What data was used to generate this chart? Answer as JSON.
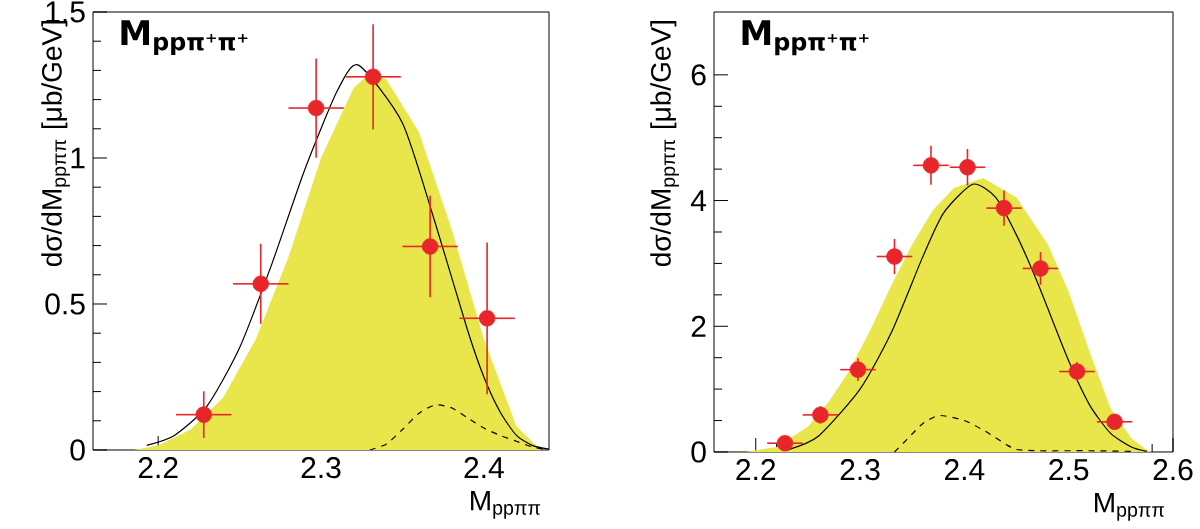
{
  "chart_data": [
    {
      "type": "scatter",
      "title": "M$_{ppπ⁺π⁺}$",
      "xlabel": "M$_{ppππ}$",
      "ylabel": "dσ/dM$_{ppππ}$ [μb/GeV]",
      "xlim": [
        2.16,
        2.44
      ],
      "ylim": [
        0,
        1.5
      ],
      "xticks": [
        2.2,
        2.3,
        2.4
      ],
      "yticks": [
        0,
        0.5,
        1,
        1.5
      ],
      "series": [
        {
          "type": "area",
          "color": "#e8e64a",
          "x": [
            2.185,
            2.2,
            2.22,
            2.24,
            2.26,
            2.28,
            2.3,
            2.32,
            2.33,
            2.34,
            2.36,
            2.38,
            2.4,
            2.42,
            2.435
          ],
          "values": [
            0,
            0.015,
            0.07,
            0.18,
            0.38,
            0.66,
            1.0,
            1.24,
            1.29,
            1.27,
            1.09,
            0.76,
            0.38,
            0.08,
            0
          ]
        },
        {
          "type": "line",
          "color": "#000000",
          "line_style": "solid",
          "x": [
            2.193,
            2.21,
            2.23,
            2.25,
            2.27,
            2.29,
            2.31,
            2.323,
            2.35,
            2.37,
            2.39,
            2.4,
            2.41,
            2.42,
            2.43,
            2.44
          ],
          "values": [
            0.016,
            0.05,
            0.15,
            0.35,
            0.64,
            0.96,
            1.23,
            1.318,
            1.12,
            0.78,
            0.41,
            0.25,
            0.13,
            0.05,
            0.015,
            0.003
          ]
        },
        {
          "type": "line",
          "color": "#000000",
          "line_style": "dashed",
          "x": [
            2.33,
            2.34,
            2.35,
            2.36,
            2.37,
            2.38,
            2.39,
            2.4,
            2.41,
            2.42,
            2.43,
            2.438
          ],
          "values": [
            0,
            0.02,
            0.07,
            0.125,
            0.154,
            0.145,
            0.11,
            0.075,
            0.05,
            0.03,
            0.01,
            0.003
          ]
        },
        {
          "color": "#e8262a",
          "x": [
            2.228,
            2.263,
            2.297,
            2.332,
            2.367,
            2.402
          ],
          "values": [
            0.121,
            0.569,
            1.171,
            1.278,
            0.697,
            0.451
          ],
          "errors": [
            0.08,
            0.137,
            0.17,
            0.18,
            0.174,
            0.26
          ],
          "xerrors": [
            0.017,
            0.017,
            0.017,
            0.017,
            0.017,
            0.017
          ]
        }
      ]
    },
    {
      "type": "scatter",
      "title": "M$_{ppπ⁺π⁺}$",
      "xlabel": "M$_{ppππ}$",
      "ylabel": "dσ/dM$_{ppππ}$ [μb/GeV]",
      "xlim": [
        2.16,
        2.6
      ],
      "ylim": [
        0,
        7
      ],
      "xticks": [
        2.2,
        2.3,
        2.4,
        2.5,
        2.6
      ],
      "yticks": [
        0,
        2,
        4,
        6
      ],
      "series": [
        {
          "type": "area",
          "color": "#e8e64a",
          "x": [
            2.19,
            2.22,
            2.25,
            2.27,
            2.29,
            2.31,
            2.33,
            2.35,
            2.37,
            2.39,
            2.418,
            2.45,
            2.48,
            2.5,
            2.52,
            2.54,
            2.56,
            2.575,
            2.58
          ],
          "values": [
            0,
            0.08,
            0.4,
            0.8,
            1.3,
            1.95,
            2.65,
            3.3,
            3.85,
            4.2,
            4.36,
            4.05,
            3.3,
            2.55,
            1.6,
            0.7,
            0.22,
            0.03,
            0
          ]
        },
        {
          "type": "line",
          "color": "#000000",
          "line_style": "solid",
          "x": [
            2.23,
            2.26,
            2.3,
            2.33,
            2.36,
            2.38,
            2.408,
            2.43,
            2.45,
            2.47,
            2.5,
            2.52,
            2.54,
            2.56,
            2.575
          ],
          "values": [
            0.03,
            0.25,
            1.0,
            1.9,
            3.1,
            3.8,
            4.26,
            4.05,
            3.45,
            2.7,
            1.45,
            0.75,
            0.3,
            0.08,
            0.01
          ]
        },
        {
          "type": "line",
          "color": "#000000",
          "line_style": "dashed",
          "x": [
            2.333,
            2.345,
            2.36,
            2.376,
            2.4,
            2.42,
            2.44,
            2.45,
            2.47,
            2.52,
            2.56
          ],
          "values": [
            0,
            0.2,
            0.45,
            0.58,
            0.5,
            0.33,
            0.12,
            0.04,
            0.02,
            0.02,
            0.01
          ]
        },
        {
          "color": "#e8262a",
          "x": [
            2.228,
            2.262,
            2.298,
            2.333,
            2.368,
            2.403,
            2.438,
            2.473,
            2.508,
            2.544
          ],
          "values": [
            0.14,
            0.59,
            1.31,
            3.11,
            4.56,
            4.53,
            3.88,
            2.92,
            1.28,
            0.48
          ],
          "errors": [
            0.1,
            0.14,
            0.18,
            0.28,
            0.31,
            0.29,
            0.28,
            0.26,
            0.15,
            0.1
          ],
          "xerrors": [
            0.017,
            0.017,
            0.017,
            0.017,
            0.017,
            0.017,
            0.017,
            0.017,
            0.017,
            0.017
          ]
        }
      ]
    }
  ]
}
